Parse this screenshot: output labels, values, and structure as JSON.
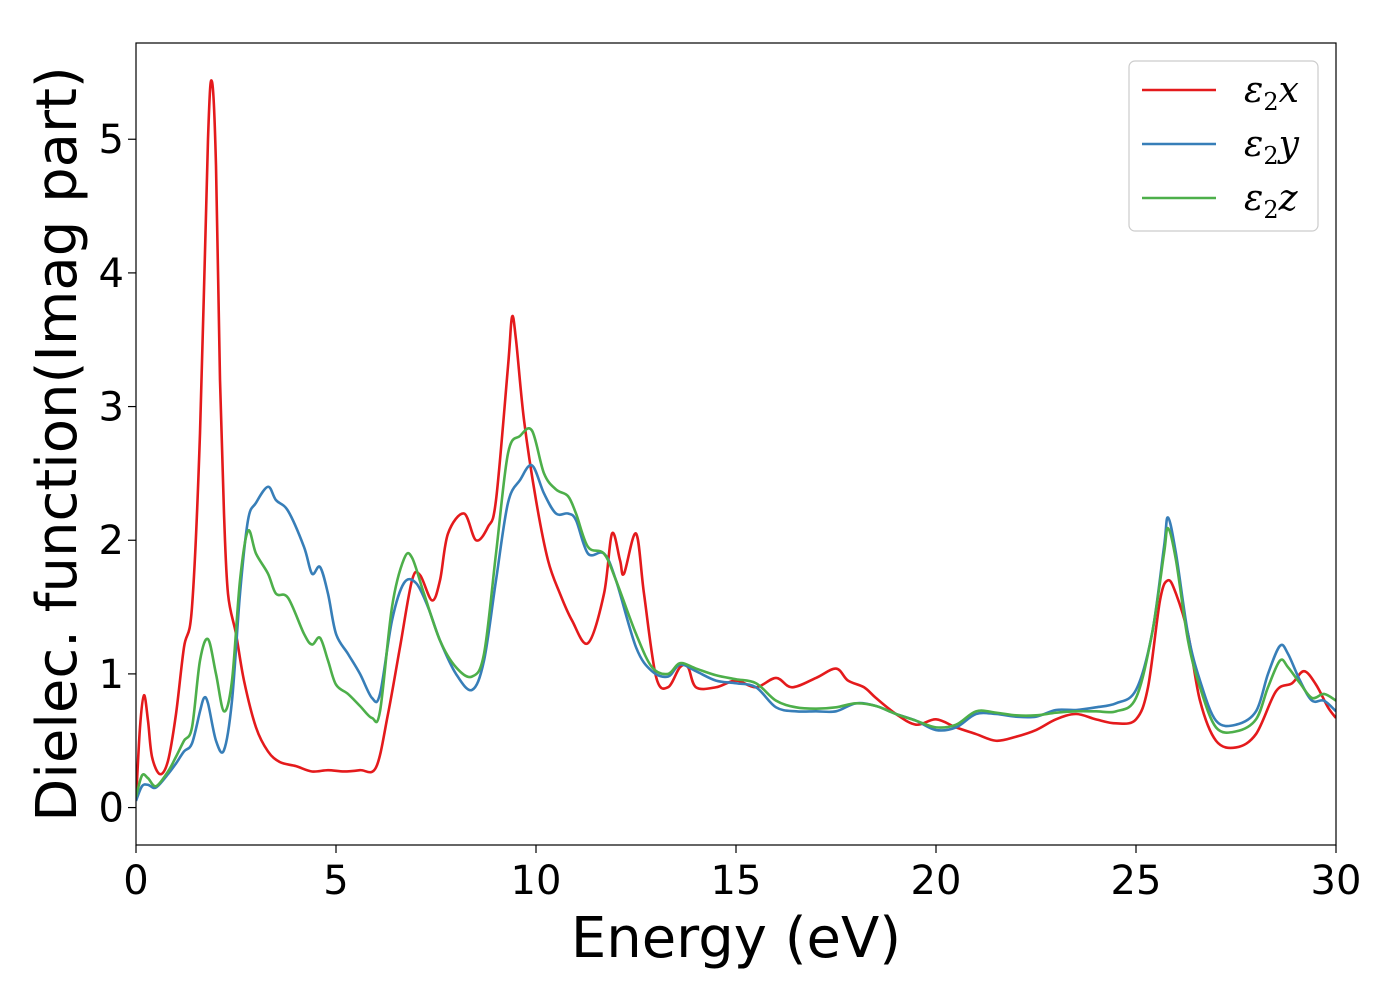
{
  "chart_data": {
    "type": "line",
    "xlabel": "Energy (eV)",
    "ylabel": "Dielec. function(Imag part)",
    "xlim": [
      0,
      30
    ],
    "ylim": [
      -0.28,
      5.72
    ],
    "xticks": [
      0,
      5,
      10,
      15,
      20,
      25,
      30
    ],
    "yticks": [
      0,
      1,
      2,
      3,
      4,
      5
    ],
    "grid": false,
    "legend_position": "top-right",
    "series": [
      {
        "name": "ε2x",
        "legend": {
          "base": "ε",
          "sub": "2",
          "suffix": "x"
        },
        "color": "#e41a1c",
        "points": [
          [
            0,
            0.05
          ],
          [
            0.1,
            0.6
          ],
          [
            0.2,
            0.84
          ],
          [
            0.3,
            0.65
          ],
          [
            0.4,
            0.38
          ],
          [
            0.6,
            0.25
          ],
          [
            0.8,
            0.35
          ],
          [
            1.0,
            0.7
          ],
          [
            1.2,
            1.2
          ],
          [
            1.4,
            1.5
          ],
          [
            1.6,
            2.8
          ],
          [
            1.8,
            5.0
          ],
          [
            1.9,
            5.43
          ],
          [
            2.0,
            4.8
          ],
          [
            2.1,
            3.2
          ],
          [
            2.2,
            2.2
          ],
          [
            2.3,
            1.6
          ],
          [
            2.5,
            1.3
          ],
          [
            2.7,
            0.95
          ],
          [
            3.0,
            0.6
          ],
          [
            3.3,
            0.42
          ],
          [
            3.6,
            0.34
          ],
          [
            4.0,
            0.31
          ],
          [
            4.4,
            0.27
          ],
          [
            4.8,
            0.28
          ],
          [
            5.2,
            0.27
          ],
          [
            5.6,
            0.28
          ],
          [
            6.0,
            0.3
          ],
          [
            6.3,
            0.7
          ],
          [
            6.6,
            1.2
          ],
          [
            6.9,
            1.7
          ],
          [
            7.1,
            1.74
          ],
          [
            7.4,
            1.55
          ],
          [
            7.6,
            1.7
          ],
          [
            7.8,
            2.05
          ],
          [
            8.2,
            2.2
          ],
          [
            8.5,
            2.0
          ],
          [
            8.8,
            2.1
          ],
          [
            9.0,
            2.3
          ],
          [
            9.3,
            3.3
          ],
          [
            9.4,
            3.67
          ],
          [
            9.5,
            3.5
          ],
          [
            9.7,
            2.9
          ],
          [
            10.0,
            2.3
          ],
          [
            10.3,
            1.85
          ],
          [
            10.6,
            1.6
          ],
          [
            10.9,
            1.4
          ],
          [
            11.3,
            1.23
          ],
          [
            11.7,
            1.6
          ],
          [
            11.9,
            2.05
          ],
          [
            12.1,
            1.85
          ],
          [
            12.2,
            1.75
          ],
          [
            12.5,
            2.05
          ],
          [
            12.7,
            1.6
          ],
          [
            13.0,
            0.98
          ],
          [
            13.3,
            0.9
          ],
          [
            13.6,
            1.05
          ],
          [
            13.8,
            1.05
          ],
          [
            14.0,
            0.9
          ],
          [
            14.5,
            0.9
          ],
          [
            15.0,
            0.95
          ],
          [
            15.5,
            0.9
          ],
          [
            16.0,
            0.97
          ],
          [
            16.4,
            0.9
          ],
          [
            17.0,
            0.97
          ],
          [
            17.5,
            1.04
          ],
          [
            17.8,
            0.95
          ],
          [
            18.2,
            0.9
          ],
          [
            18.5,
            0.82
          ],
          [
            19.0,
            0.7
          ],
          [
            19.5,
            0.62
          ],
          [
            20.0,
            0.66
          ],
          [
            20.5,
            0.6
          ],
          [
            21.0,
            0.55
          ],
          [
            21.5,
            0.5
          ],
          [
            22.0,
            0.53
          ],
          [
            22.5,
            0.58
          ],
          [
            23.0,
            0.66
          ],
          [
            23.5,
            0.7
          ],
          [
            24.0,
            0.66
          ],
          [
            24.5,
            0.63
          ],
          [
            25.0,
            0.66
          ],
          [
            25.3,
            0.9
          ],
          [
            25.6,
            1.55
          ],
          [
            25.8,
            1.7
          ],
          [
            26.0,
            1.6
          ],
          [
            26.3,
            1.3
          ],
          [
            26.6,
            0.8
          ],
          [
            27.0,
            0.5
          ],
          [
            27.5,
            0.45
          ],
          [
            28.0,
            0.55
          ],
          [
            28.5,
            0.87
          ],
          [
            28.9,
            0.93
          ],
          [
            29.2,
            1.02
          ],
          [
            29.5,
            0.92
          ],
          [
            29.8,
            0.75
          ],
          [
            30.0,
            0.67
          ]
        ]
      },
      {
        "name": "ε2y",
        "legend": {
          "base": "ε",
          "sub": "2",
          "suffix": "y"
        },
        "color": "#377eb8",
        "points": [
          [
            0,
            0.05
          ],
          [
            0.15,
            0.16
          ],
          [
            0.3,
            0.17
          ],
          [
            0.5,
            0.15
          ],
          [
            0.8,
            0.25
          ],
          [
            1.0,
            0.33
          ],
          [
            1.2,
            0.42
          ],
          [
            1.4,
            0.48
          ],
          [
            1.6,
            0.72
          ],
          [
            1.7,
            0.82
          ],
          [
            1.8,
            0.78
          ],
          [
            2.0,
            0.5
          ],
          [
            2.2,
            0.43
          ],
          [
            2.4,
            0.8
          ],
          [
            2.6,
            1.6
          ],
          [
            2.8,
            2.15
          ],
          [
            3.0,
            2.28
          ],
          [
            3.3,
            2.4
          ],
          [
            3.5,
            2.3
          ],
          [
            3.8,
            2.22
          ],
          [
            4.2,
            1.95
          ],
          [
            4.4,
            1.75
          ],
          [
            4.6,
            1.8
          ],
          [
            4.8,
            1.6
          ],
          [
            5.0,
            1.3
          ],
          [
            5.3,
            1.15
          ],
          [
            5.6,
            1.0
          ],
          [
            5.9,
            0.82
          ],
          [
            6.1,
            0.85
          ],
          [
            6.4,
            1.4
          ],
          [
            6.7,
            1.68
          ],
          [
            7.0,
            1.68
          ],
          [
            7.3,
            1.5
          ],
          [
            7.6,
            1.25
          ],
          [
            8.0,
            1.0
          ],
          [
            8.4,
            0.88
          ],
          [
            8.7,
            1.1
          ],
          [
            9.0,
            1.7
          ],
          [
            9.3,
            2.28
          ],
          [
            9.6,
            2.45
          ],
          [
            9.9,
            2.56
          ],
          [
            10.2,
            2.35
          ],
          [
            10.5,
            2.2
          ],
          [
            10.8,
            2.2
          ],
          [
            11.0,
            2.15
          ],
          [
            11.3,
            1.9
          ],
          [
            11.7,
            1.9
          ],
          [
            12.0,
            1.7
          ],
          [
            12.5,
            1.2
          ],
          [
            12.9,
            1.02
          ],
          [
            13.3,
            0.98
          ],
          [
            13.6,
            1.07
          ],
          [
            14.0,
            1.02
          ],
          [
            14.5,
            0.95
          ],
          [
            15.0,
            0.93
          ],
          [
            15.5,
            0.9
          ],
          [
            16.0,
            0.75
          ],
          [
            16.5,
            0.72
          ],
          [
            17.0,
            0.72
          ],
          [
            17.5,
            0.72
          ],
          [
            18.0,
            0.78
          ],
          [
            18.5,
            0.76
          ],
          [
            19.0,
            0.7
          ],
          [
            19.5,
            0.65
          ],
          [
            20.0,
            0.58
          ],
          [
            20.5,
            0.6
          ],
          [
            21.0,
            0.7
          ],
          [
            21.5,
            0.7
          ],
          [
            22.0,
            0.68
          ],
          [
            22.5,
            0.68
          ],
          [
            23.0,
            0.73
          ],
          [
            23.5,
            0.73
          ],
          [
            24.0,
            0.75
          ],
          [
            24.5,
            0.78
          ],
          [
            25.0,
            0.88
          ],
          [
            25.4,
            1.3
          ],
          [
            25.7,
            1.95
          ],
          [
            25.8,
            2.17
          ],
          [
            26.0,
            1.9
          ],
          [
            26.3,
            1.3
          ],
          [
            26.6,
            0.95
          ],
          [
            27.0,
            0.65
          ],
          [
            27.5,
            0.62
          ],
          [
            28.0,
            0.72
          ],
          [
            28.3,
            1.0
          ],
          [
            28.6,
            1.21
          ],
          [
            28.8,
            1.15
          ],
          [
            29.1,
            0.95
          ],
          [
            29.4,
            0.8
          ],
          [
            29.7,
            0.8
          ],
          [
            30.0,
            0.72
          ]
        ]
      },
      {
        "name": "ε2z",
        "legend": {
          "base": "ε",
          "sub": "2",
          "suffix": "z"
        },
        "color": "#4daf4a",
        "points": [
          [
            0,
            0.08
          ],
          [
            0.15,
            0.24
          ],
          [
            0.3,
            0.22
          ],
          [
            0.5,
            0.16
          ],
          [
            0.8,
            0.27
          ],
          [
            1.0,
            0.38
          ],
          [
            1.2,
            0.5
          ],
          [
            1.4,
            0.6
          ],
          [
            1.6,
            1.1
          ],
          [
            1.8,
            1.26
          ],
          [
            2.0,
            1.0
          ],
          [
            2.2,
            0.72
          ],
          [
            2.4,
            0.95
          ],
          [
            2.6,
            1.7
          ],
          [
            2.8,
            2.07
          ],
          [
            3.0,
            1.9
          ],
          [
            3.3,
            1.75
          ],
          [
            3.5,
            1.6
          ],
          [
            3.8,
            1.57
          ],
          [
            4.2,
            1.3
          ],
          [
            4.4,
            1.22
          ],
          [
            4.6,
            1.27
          ],
          [
            4.8,
            1.1
          ],
          [
            5.0,
            0.92
          ],
          [
            5.3,
            0.85
          ],
          [
            5.6,
            0.76
          ],
          [
            5.9,
            0.67
          ],
          [
            6.1,
            0.72
          ],
          [
            6.4,
            1.5
          ],
          [
            6.7,
            1.86
          ],
          [
            6.9,
            1.87
          ],
          [
            7.2,
            1.6
          ],
          [
            7.6,
            1.25
          ],
          [
            8.0,
            1.05
          ],
          [
            8.4,
            0.98
          ],
          [
            8.7,
            1.15
          ],
          [
            9.0,
            1.9
          ],
          [
            9.3,
            2.65
          ],
          [
            9.6,
            2.78
          ],
          [
            9.9,
            2.82
          ],
          [
            10.2,
            2.5
          ],
          [
            10.5,
            2.38
          ],
          [
            10.8,
            2.33
          ],
          [
            11.0,
            2.2
          ],
          [
            11.3,
            1.95
          ],
          [
            11.7,
            1.9
          ],
          [
            12.0,
            1.7
          ],
          [
            12.5,
            1.3
          ],
          [
            12.9,
            1.05
          ],
          [
            13.3,
            1.0
          ],
          [
            13.6,
            1.08
          ],
          [
            14.0,
            1.04
          ],
          [
            14.5,
            0.99
          ],
          [
            15.0,
            0.96
          ],
          [
            15.5,
            0.93
          ],
          [
            16.0,
            0.8
          ],
          [
            16.5,
            0.75
          ],
          [
            17.0,
            0.74
          ],
          [
            17.5,
            0.75
          ],
          [
            18.0,
            0.78
          ],
          [
            18.5,
            0.76
          ],
          [
            19.0,
            0.7
          ],
          [
            19.5,
            0.65
          ],
          [
            20.0,
            0.6
          ],
          [
            20.5,
            0.62
          ],
          [
            21.0,
            0.72
          ],
          [
            21.5,
            0.71
          ],
          [
            22.0,
            0.69
          ],
          [
            22.5,
            0.69
          ],
          [
            23.0,
            0.71
          ],
          [
            23.5,
            0.72
          ],
          [
            24.0,
            0.72
          ],
          [
            24.5,
            0.72
          ],
          [
            25.0,
            0.82
          ],
          [
            25.4,
            1.3
          ],
          [
            25.7,
            1.9
          ],
          [
            25.8,
            2.09
          ],
          [
            26.0,
            1.85
          ],
          [
            26.3,
            1.25
          ],
          [
            26.6,
            0.9
          ],
          [
            27.0,
            0.6
          ],
          [
            27.5,
            0.57
          ],
          [
            28.0,
            0.66
          ],
          [
            28.3,
            0.9
          ],
          [
            28.6,
            1.1
          ],
          [
            28.8,
            1.05
          ],
          [
            29.1,
            0.93
          ],
          [
            29.4,
            0.82
          ],
          [
            29.7,
            0.85
          ],
          [
            30.0,
            0.8
          ]
        ]
      }
    ]
  }
}
